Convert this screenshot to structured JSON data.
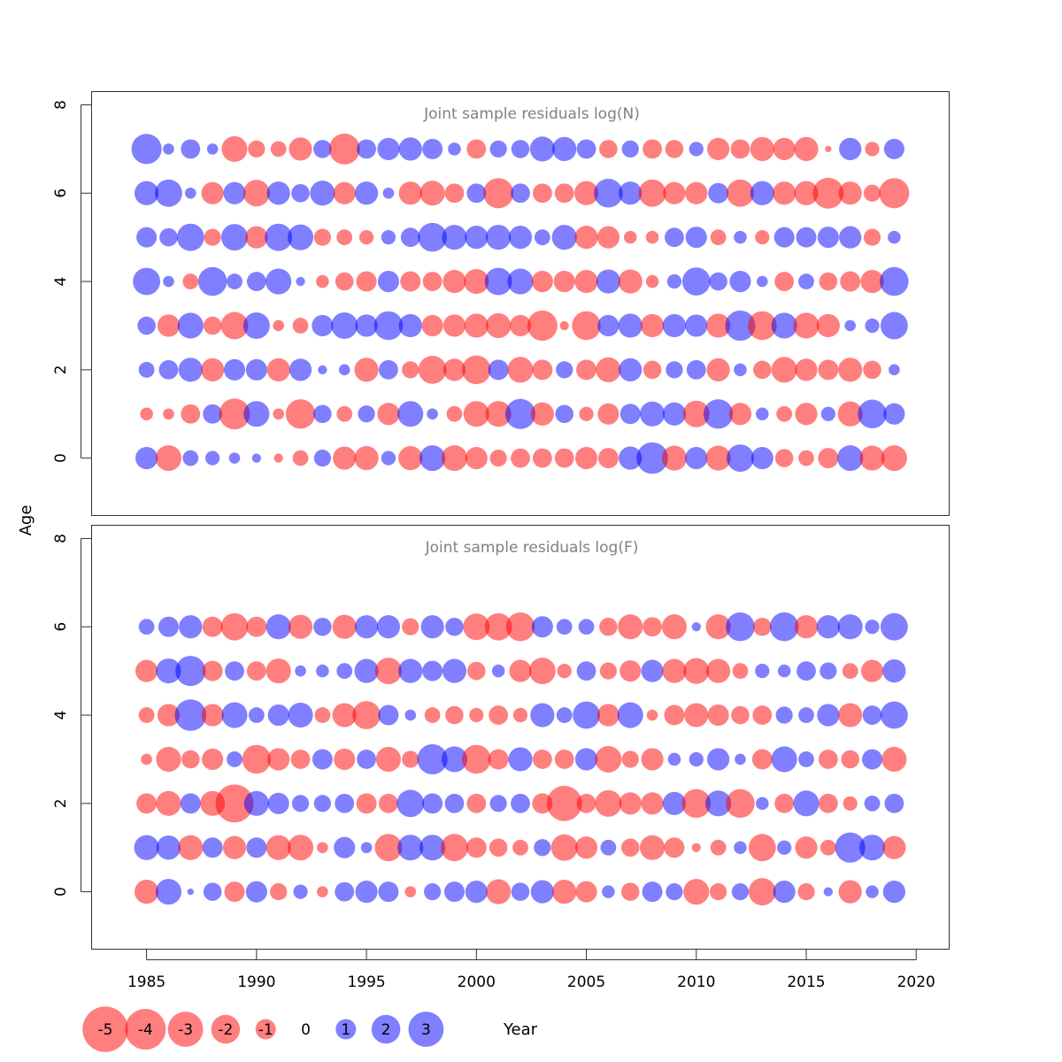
{
  "chart_data": {
    "type": "scatter",
    "subtype": "bubble",
    "xlabel": "Year",
    "ylabel": "Age",
    "xlim": [
      1982.5,
      2021.5
    ],
    "ylim": [
      -1.3,
      8.3
    ],
    "x_ticks": [
      1985,
      1990,
      1995,
      2000,
      2005,
      2010,
      2015,
      2020
    ],
    "x_tick_labels": [
      "1985",
      "1990",
      "1995",
      "2000",
      "2005",
      "2010",
      "2015",
      "2020"
    ],
    "y_ticks": [
      0,
      2,
      4,
      6,
      8
    ],
    "y_tick_labels": [
      "0",
      "2",
      "4",
      "6",
      "8"
    ],
    "positive_color": "#0000ff",
    "negative_color": "#ff0000",
    "bubble_alpha": 0.5,
    "years": [
      1985,
      1986,
      1987,
      1988,
      1989,
      1990,
      1991,
      1992,
      1993,
      1994,
      1995,
      1996,
      1997,
      1998,
      1999,
      2000,
      2001,
      2002,
      2003,
      2004,
      2005,
      2006,
      2007,
      2008,
      2009,
      2010,
      2011,
      2012,
      2013,
      2014,
      2015,
      2016,
      2017,
      2018,
      2019
    ],
    "panels": [
      {
        "title": "Joint sample residuals log(N)",
        "ages": [
          0,
          1,
          2,
          3,
          4,
          5,
          6,
          7
        ],
        "residuals": [
          [
            1.2,
            -1.6,
            0.6,
            0.5,
            0.3,
            0.2,
            -0.2,
            -0.6,
            0.7,
            -1.3,
            -1.4,
            0.5,
            -1.4,
            1.6,
            -1.6,
            -1.2,
            -0.7,
            -0.9,
            -0.9,
            -0.9,
            -1.2,
            -1.0,
            1.3,
            2.4,
            -1.5,
            1.2,
            -1.5,
            1.8,
            1.2,
            -0.8,
            -0.6,
            -1.0,
            1.6,
            -1.5,
            -1.6
          ],
          [
            -0.4,
            -0.3,
            -0.9,
            0.9,
            -2.3,
            1.6,
            -0.3,
            -2.1,
            0.8,
            -0.6,
            0.7,
            -1.2,
            1.6,
            0.3,
            -0.6,
            -1.6,
            -1.6,
            2.2,
            -1.3,
            0.8,
            -0.5,
            -1.1,
            1.0,
            1.5,
            1.3,
            -1.7,
            2.1,
            -1.2,
            0.4,
            -0.6,
            -1.2,
            0.5,
            -1.5,
            2.0,
            1.1
          ],
          [
            0.6,
            0.9,
            1.4,
            -1.3,
            1.1,
            1.1,
            -1.3,
            1.2,
            0.2,
            0.3,
            -1.4,
            0.9,
            -0.7,
            -1.9,
            -1.2,
            -2.0,
            1.0,
            -1.6,
            -1.0,
            0.7,
            -1.0,
            -1.5,
            1.3,
            -0.8,
            0.7,
            0.9,
            -1.3,
            0.4,
            -0.8,
            -1.6,
            -1.2,
            -1.0,
            -1.4,
            -0.8,
            0.3
          ],
          [
            0.8,
            -1.2,
            1.6,
            -0.8,
            -1.8,
            1.7,
            -0.3,
            -0.6,
            1.1,
            1.7,
            1.2,
            2.0,
            1.3,
            -1.1,
            -1.2,
            -1.4,
            -1.5,
            -1.1,
            -2.2,
            -0.2,
            -2.0,
            1.1,
            1.4,
            -1.3,
            1.3,
            1.2,
            -1.4,
            2.2,
            -2.0,
            1.6,
            -1.6,
            -1.3,
            0.3,
            0.5,
            1.8
          ],
          [
            1.8,
            0.3,
            -0.6,
            2.0,
            0.6,
            0.9,
            1.6,
            0.2,
            -0.4,
            -0.8,
            -1.0,
            1.1,
            -1.0,
            -0.9,
            -1.3,
            -1.5,
            1.8,
            1.6,
            -1.1,
            -1.1,
            -1.3,
            1.4,
            -1.4,
            -0.4,
            0.5,
            1.9,
            0.8,
            1.1,
            0.3,
            -0.9,
            0.6,
            -0.8,
            -1.0,
            -1.3,
            2.0
          ],
          [
            1.0,
            0.8,
            1.8,
            -0.7,
            1.7,
            -1.2,
            1.8,
            1.6,
            -0.7,
            -0.6,
            -0.5,
            0.5,
            0.9,
            2.0,
            1.5,
            1.3,
            1.5,
            1.3,
            0.6,
            1.5,
            -1.3,
            -1.2,
            -0.4,
            -0.4,
            0.9,
            1.1,
            -0.6,
            0.4,
            -0.5,
            1.0,
            1.0,
            1.1,
            1.2,
            -0.7,
            0.4
          ],
          [
            1.4,
            1.8,
            0.3,
            -1.2,
            1.2,
            -1.7,
            1.3,
            0.8,
            1.5,
            -1.2,
            1.3,
            0.3,
            -1.3,
            -1.5,
            -0.9,
            0.9,
            -2.2,
            0.9,
            -0.9,
            -0.9,
            -1.4,
            2.0,
            1.3,
            -1.8,
            -1.2,
            -1.2,
            1.0,
            -1.8,
            1.4,
            -1.3,
            -1.4,
            -2.3,
            -1.3,
            -0.7,
            -2.2
          ],
          [
            2.2,
            0.3,
            0.9,
            0.3,
            -1.6,
            -0.7,
            -0.6,
            -1.3,
            0.8,
            -2.3,
            0.9,
            1.2,
            1.3,
            1.0,
            0.4,
            -0.9,
            0.7,
            0.8,
            1.5,
            1.4,
            0.9,
            -0.8,
            0.7,
            -0.9,
            -0.8,
            0.5,
            -1.2,
            -0.9,
            -1.4,
            -1.2,
            -1.4,
            -0.1,
            1.2,
            -0.5,
            1.0
          ]
        ]
      },
      {
        "title": "Joint sample residuals log(F)",
        "ages": [
          0,
          1,
          2,
          3,
          4,
          5,
          6
        ],
        "residuals": [
          [
            -1.4,
            1.6,
            0.1,
            0.8,
            -1.0,
            1.1,
            -0.7,
            0.5,
            -0.3,
            0.9,
            1.2,
            1.0,
            -0.3,
            0.7,
            1.0,
            1.2,
            -1.5,
            0.8,
            1.3,
            -1.4,
            -1.1,
            0.4,
            -0.8,
            1.0,
            0.7,
            -1.6,
            -0.7,
            0.7,
            -1.8,
            1.2,
            -0.7,
            0.2,
            -1.3,
            0.4,
            1.2
          ],
          [
            1.5,
            1.4,
            -1.5,
            1.0,
            -1.3,
            1.0,
            -1.5,
            -1.6,
            -0.3,
            1.1,
            0.3,
            -1.8,
            1.6,
            1.6,
            -1.8,
            -1.0,
            -0.8,
            -0.6,
            0.7,
            -1.7,
            -1.2,
            0.6,
            -0.8,
            -1.5,
            -1.0,
            -0.2,
            -0.6,
            0.4,
            -1.8,
            0.5,
            -1.2,
            -0.6,
            2.2,
            1.6,
            -1.3
          ],
          [
            -1.0,
            -1.5,
            1.0,
            -1.5,
            -3.5,
            1.5,
            1.1,
            0.7,
            0.7,
            0.9,
            -1.0,
            -0.9,
            1.8,
            1.0,
            0.9,
            -0.9,
            0.7,
            0.9,
            -1.0,
            -3.0,
            -0.9,
            -1.7,
            -1.2,
            -1.2,
            1.3,
            -2.0,
            1.6,
            -2.0,
            0.4,
            -0.9,
            1.6,
            -0.9,
            -0.5,
            0.6,
            0.9
          ],
          [
            -0.3,
            -1.5,
            -0.8,
            -1.1,
            0.6,
            -2.0,
            -1.2,
            -0.9,
            1.0,
            -1.1,
            0.9,
            -1.5,
            -0.7,
            2.2,
            1.6,
            -2.0,
            -1.0,
            1.4,
            -0.9,
            -0.9,
            1.2,
            -1.7,
            -0.7,
            -1.2,
            0.4,
            0.5,
            1.2,
            0.3,
            -1.0,
            1.6,
            0.6,
            -0.9,
            -0.8,
            1.0,
            -1.5
          ],
          [
            -0.6,
            -1.2,
            2.4,
            -1.2,
            1.6,
            0.6,
            1.1,
            1.5,
            -0.6,
            -1.4,
            -1.9,
            1.0,
            0.3,
            -0.6,
            -0.8,
            -0.5,
            -0.9,
            -0.5,
            1.4,
            0.6,
            1.8,
            -1.2,
            1.6,
            -0.3,
            -1.0,
            -1.4,
            -1.1,
            -0.8,
            -0.9,
            0.7,
            0.6,
            1.2,
            -1.4,
            0.9,
            1.8
          ],
          [
            -1.2,
            1.5,
            2.2,
            -1.0,
            0.9,
            -0.9,
            -1.5,
            0.3,
            0.4,
            0.6,
            1.4,
            -1.7,
            1.4,
            1.0,
            1.4,
            -0.8,
            0.4,
            -1.2,
            -1.7,
            -0.5,
            0.9,
            -0.7,
            -1.1,
            1.2,
            -1.4,
            -1.6,
            -1.4,
            -0.6,
            0.5,
            0.4,
            0.9,
            0.7,
            -0.6,
            -1.2,
            1.3
          ],
          [
            0.6,
            1.0,
            1.3,
            -1.0,
            -1.8,
            -1.0,
            1.5,
            -1.4,
            0.8,
            -1.4,
            1.3,
            1.3,
            -0.7,
            1.3,
            0.8,
            -1.7,
            -1.8,
            -2.0,
            1.1,
            0.6,
            0.6,
            -0.8,
            -1.5,
            -0.9,
            -1.5,
            0.2,
            -1.5,
            2.0,
            -0.8,
            2.0,
            -1.3,
            1.3,
            1.5,
            0.5,
            1.8
          ]
        ]
      }
    ],
    "legend": {
      "values": [
        -5,
        -4,
        -3,
        -2,
        -1,
        0,
        1,
        2,
        3
      ],
      "labels": [
        "-5",
        "-4",
        "-3",
        "-2",
        "-1",
        "0",
        "1",
        "2",
        "3"
      ],
      "placement": "bottom-left"
    }
  }
}
